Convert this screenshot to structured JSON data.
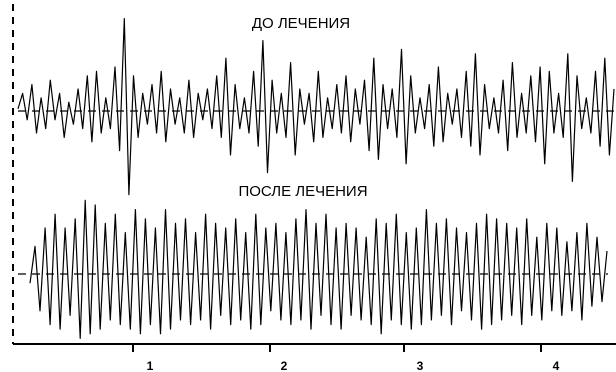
{
  "chart_data": {
    "type": "line",
    "panels": [
      {
        "title": "ДО ЛЕЧЕНИЯ"
      },
      {
        "title": "ПОСЛЕ ЛЕЧЕНИЯ"
      }
    ],
    "x_ticks": [
      "1",
      "2",
      "3",
      "4"
    ],
    "grid": false,
    "legend": "none",
    "colors": {
      "trace": "#000000",
      "baseline": "#000000",
      "background": "#ffffff"
    },
    "series": [
      {
        "values": [
          0.05,
          0.4,
          -0.2,
          0.6,
          -0.5,
          0.3,
          -0.4,
          0.7,
          -0.2,
          0.4,
          -0.6,
          0.2,
          -0.3,
          0.5,
          -0.4,
          0.8,
          -0.7,
          0.9,
          -0.5,
          0.3,
          -0.4,
          1.0,
          -0.9,
          2.1,
          -1.9,
          0.8,
          -0.6,
          0.4,
          -0.3,
          0.6,
          -0.5,
          0.9,
          -0.7,
          0.5,
          -0.3,
          0.3,
          -0.5,
          0.7,
          -0.6,
          0.4,
          -0.2,
          0.5,
          -0.4,
          0.8,
          -0.6,
          1.2,
          -1.0,
          0.6,
          -0.4,
          0.3,
          -0.5,
          0.9,
          -0.8,
          1.6,
          -1.4,
          0.7,
          -0.5,
          0.4,
          -0.6,
          1.1,
          -1.0,
          0.5,
          -0.3,
          0.4,
          -0.7,
          0.9,
          -0.6,
          0.3,
          -0.4,
          0.6,
          -0.5,
          0.8,
          -0.7,
          0.5,
          -0.3,
          0.7,
          -0.9,
          1.2,
          -1.1,
          0.6,
          -0.4,
          0.5,
          -0.6,
          1.4,
          -1.2,
          0.8,
          -0.5,
          0.3,
          -0.4,
          0.6,
          -0.8,
          1.0,
          -0.7,
          0.4,
          -0.3,
          0.5,
          -0.6,
          0.9,
          -0.8,
          1.3,
          -1.0,
          0.6,
          -0.4,
          0.3,
          -0.5,
          0.7,
          -0.9,
          1.1,
          -0.6,
          0.4,
          -0.5,
          0.8,
          -0.7,
          1.0,
          -1.2,
          0.9,
          -0.5,
          0.4,
          -0.6,
          1.3,
          -1.6,
          0.8,
          -0.4,
          0.3,
          -0.5,
          0.9,
          -0.8,
          1.2,
          -1.0,
          0.5
        ]
      },
      {
        "values": [
          -0.2,
          0.6,
          -0.8,
          1.0,
          -1.1,
          1.3,
          -1.2,
          1.0,
          -0.9,
          1.2,
          -1.4,
          1.6,
          -1.3,
          1.5,
          -1.2,
          1.1,
          -1.0,
          1.3,
          -1.1,
          0.9,
          -1.2,
          1.4,
          -1.3,
          1.2,
          -1.1,
          1.0,
          -1.3,
          1.4,
          -1.2,
          1.1,
          -1.0,
          1.2,
          -1.1,
          0.9,
          -1.0,
          1.3,
          -1.2,
          1.1,
          -0.9,
          1.0,
          -1.1,
          1.2,
          -1.0,
          0.9,
          -1.2,
          1.3,
          -1.1,
          1.0,
          -0.8,
          1.1,
          -1.0,
          0.9,
          -1.1,
          1.2,
          -1.0,
          1.4,
          -1.2,
          1.1,
          -0.9,
          1.3,
          -1.1,
          1.0,
          -1.2,
          1.1,
          -0.9,
          1.0,
          -1.0,
          0.8,
          -1.1,
          1.2,
          -1.3,
          1.1,
          -1.0,
          1.3,
          -1.1,
          0.9,
          -1.2,
          1.0,
          -1.1,
          1.4,
          -1.0,
          1.1,
          -0.9,
          1.2,
          -1.1,
          1.0,
          -0.8,
          0.9,
          -1.0,
          1.1,
          -1.2,
          1.3,
          -1.1,
          1.2,
          -1.0,
          1.1,
          -0.9,
          1.0,
          -1.1,
          1.2,
          -0.9,
          0.8,
          -1.0,
          1.1,
          -0.8,
          1.0,
          -0.9,
          0.7,
          -0.8,
          0.9,
          -1.0,
          1.1,
          -0.7,
          0.8,
          -0.6,
          0.5
        ]
      }
    ]
  }
}
